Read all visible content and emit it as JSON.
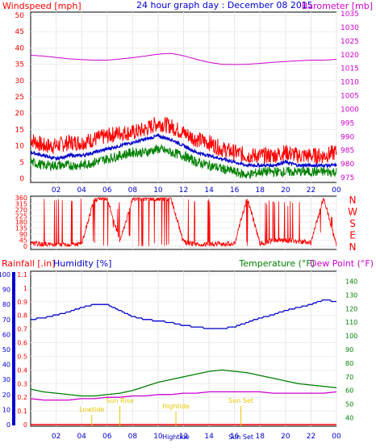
{
  "header": {
    "windspeed_label": "Windspeed [mph]",
    "title": "24 hour graph day : December 08 2015",
    "barometer_label": "Barometer [mb]"
  },
  "footer": {
    "rainfall_label": "Rainfall [.in]",
    "humidity_label": "Humidity [%]",
    "temperature_label": "Temperature (°F)",
    "dewpoint_label": "Dew Point (°F)"
  },
  "colors": {
    "wind": "#ff0000",
    "gust": "#ff0000",
    "avg_wind": "#0000cc",
    "low_wind": "#008000",
    "barometer": "#cc00cc",
    "direction": "#ff0000",
    "humidity": "#0000cc",
    "temperature": "#008000",
    "dewpoint": "#cc00cc",
    "rain": "#ff0000",
    "tide_sun": "#e6c800"
  },
  "chart_data": [
    {
      "type": "line",
      "panel": "wind_barometer",
      "x_ticks": [
        "02",
        "04",
        "06",
        "08",
        "10",
        "12",
        "14",
        "16",
        "18",
        "20",
        "22",
        "00"
      ],
      "y_left": {
        "label": "Windspeed [mph]",
        "ylim": [
          0,
          50
        ],
        "ticks": [
          "0",
          "5",
          "10",
          "15",
          "20",
          "25",
          "30",
          "35",
          "40",
          "45",
          "50"
        ]
      },
      "y_right": {
        "label": "Barometer [mb]",
        "ylim": [
          975,
          1035
        ],
        "ticks": [
          "975",
          "980",
          "985",
          "990",
          "995",
          "1000",
          "1005",
          "1010",
          "1015",
          "1020",
          "1025",
          "1030",
          "1035"
        ]
      },
      "x": [
        0,
        1,
        2,
        3,
        4,
        5,
        6,
        7,
        8,
        9,
        10,
        11,
        12,
        13,
        14,
        15,
        16,
        17,
        18,
        19,
        20,
        21,
        22,
        23,
        24
      ],
      "series": [
        {
          "key": "gust",
          "axis": "left",
          "values": [
            12,
            10,
            10,
            11,
            11,
            12,
            13,
            14,
            14,
            15,
            17,
            16,
            14,
            12,
            11,
            9,
            8,
            7,
            7,
            7,
            8,
            7,
            7,
            7,
            8
          ]
        },
        {
          "key": "avg_wind",
          "axis": "left",
          "values": [
            8,
            7,
            6,
            7,
            7,
            8,
            9,
            10,
            11,
            12,
            13,
            12,
            10,
            8,
            7,
            6,
            5,
            4,
            4,
            4,
            5,
            4,
            4,
            4,
            4
          ]
        },
        {
          "key": "low_wind",
          "axis": "left",
          "values": [
            5,
            4,
            4,
            4,
            4,
            5,
            6,
            7,
            8,
            8,
            9,
            8,
            7,
            5,
            4,
            3,
            2,
            1,
            2,
            2,
            2,
            2,
            2,
            2,
            2
          ]
        },
        {
          "key": "barometer",
          "axis": "right",
          "values": [
            1019.8,
            1019.5,
            1019.0,
            1018.5,
            1018.2,
            1018.0,
            1018.0,
            1018.4,
            1018.9,
            1019.5,
            1020.2,
            1020.5,
            1019.6,
            1018.3,
            1017.2,
            1016.5,
            1016.4,
            1016.5,
            1016.8,
            1017.2,
            1017.5,
            1017.8,
            1018.0,
            1018.0,
            1018.3
          ]
        }
      ]
    },
    {
      "type": "scatter",
      "panel": "wind_direction",
      "x_ticks": [
        "02",
        "04",
        "06",
        "08",
        "10",
        "12",
        "14",
        "16",
        "18",
        "20",
        "22",
        "00"
      ],
      "y_left": {
        "ylim": [
          0,
          360
        ],
        "ticks": [
          "0",
          "45",
          "90",
          "135",
          "180",
          "225",
          "270",
          "315",
          "360"
        ]
      },
      "y_right_labels": [
        "N",
        "W",
        "S",
        "E",
        "N"
      ],
      "x": [
        0,
        1,
        2,
        3,
        4,
        5,
        6,
        7,
        8,
        9,
        10,
        11,
        12,
        13,
        14,
        15,
        16,
        17,
        18,
        19,
        20,
        21,
        22,
        23,
        24
      ],
      "values": [
        20,
        15,
        10,
        12,
        15,
        350,
        355,
        40,
        350,
        355,
        350,
        355,
        30,
        10,
        15,
        20,
        15,
        360,
        20,
        40,
        45,
        35,
        30,
        360,
        5
      ]
    },
    {
      "type": "line",
      "panel": "rain_humidity_temp",
      "x_ticks": [
        "02",
        "04",
        "06",
        "08",
        "10",
        "12",
        "14",
        "16",
        "18",
        "20",
        "22",
        "00"
      ],
      "y_rain": {
        "label": "Rainfall [.in]",
        "ylim": [
          0,
          1.1
        ],
        "ticks": [
          "0",
          "0.1",
          "0.2",
          "0.3",
          "0.4",
          "0.5",
          "0.6",
          "0.7",
          "0.8",
          "0.9",
          "1",
          "1.1"
        ]
      },
      "y_humidity": {
        "label": "Humidity [%]",
        "ylim": [
          0,
          100
        ],
        "ticks": [
          "0",
          "10",
          "20",
          "30",
          "40",
          "50",
          "60",
          "70",
          "80",
          "90",
          "100"
        ]
      },
      "y_temp": {
        "label": "Temperature (°F)",
        "ylim": [
          35,
          145
        ],
        "ticks": [
          "40",
          "50",
          "60",
          "70",
          "80",
          "90",
          "100",
          "110",
          "120",
          "130",
          "140"
        ]
      },
      "x": [
        0,
        1,
        2,
        3,
        4,
        5,
        6,
        7,
        8,
        9,
        10,
        11,
        12,
        13,
        14,
        15,
        16,
        17,
        18,
        19,
        20,
        21,
        22,
        23,
        24
      ],
      "series": [
        {
          "key": "humidity",
          "axis": "humidity",
          "values": [
            70,
            71,
            73,
            75,
            78,
            80,
            80,
            76,
            72,
            70,
            69,
            68,
            66,
            65,
            64,
            64,
            65,
            68,
            71,
            73,
            76,
            78,
            80,
            83,
            82
          ]
        },
        {
          "key": "temperature",
          "axis": "temp",
          "values": [
            61,
            59,
            58,
            57,
            56,
            56,
            57,
            58,
            60,
            63,
            66,
            68,
            70,
            72,
            74,
            75,
            74,
            73,
            71,
            69,
            67,
            65,
            64,
            63,
            62
          ]
        },
        {
          "key": "dewpoint",
          "axis": "temp",
          "values": [
            54,
            53,
            53,
            53,
            54,
            54,
            55,
            55,
            56,
            56,
            57,
            57,
            58,
            58,
            59,
            59,
            59,
            59,
            59,
            58,
            58,
            58,
            58,
            58,
            59
          ]
        },
        {
          "key": "rain",
          "axis": "rain",
          "values": [
            0,
            0,
            0,
            0,
            0,
            0,
            0,
            0,
            0,
            0,
            0,
            0,
            0,
            0,
            0,
            0,
            0,
            0,
            0,
            0,
            0,
            0,
            0,
            0,
            0
          ]
        }
      ],
      "annotations": [
        {
          "label": "Lowtide",
          "x": 4.8
        },
        {
          "label": "Sun Rise",
          "x": 7.0
        },
        {
          "label": "Hightide",
          "x": 11.4
        },
        {
          "label": "Sun Set",
          "x": 16.5
        }
      ],
      "bottom_markers": [
        "Hightide",
        "Sun Set"
      ]
    }
  ]
}
